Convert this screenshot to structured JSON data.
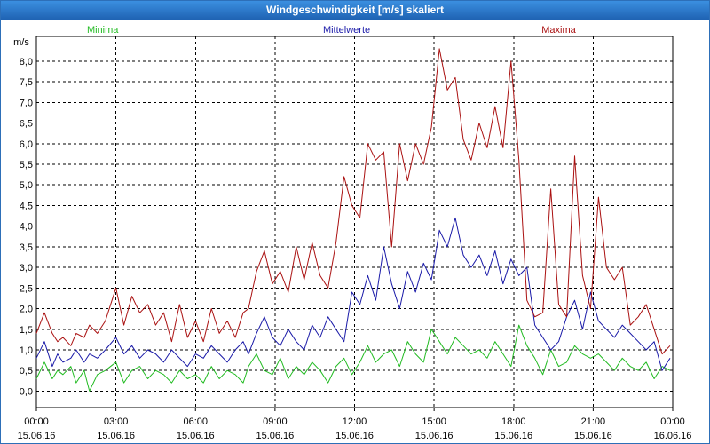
{
  "window": {
    "title": "Windgeschwindigkeit [m/s] skaliert"
  },
  "chart_data": {
    "type": "line",
    "title": "Windgeschwindigkeit [m/s] skaliert",
    "ylabel": "m/s",
    "xlabel": "",
    "ylim": [
      -0.4,
      8.6
    ],
    "xlim": [
      0,
      24
    ],
    "grid": true,
    "legend_position": "top",
    "y_ticks": [
      0,
      0.5,
      1,
      1.5,
      2,
      2.5,
      3,
      3.5,
      4,
      4.5,
      5,
      5.5,
      6,
      6.5,
      7,
      7.5,
      8
    ],
    "y_tick_labels": [
      "0,0",
      "0,5",
      "1,0",
      "1,5",
      "2,0",
      "2,5",
      "3,0",
      "3,5",
      "4,0",
      "4,5",
      "5,0",
      "5,5",
      "6,0",
      "6,5",
      "7,0",
      "7,5",
      "8,0"
    ],
    "x_ticks": [
      0,
      3,
      6,
      9,
      12,
      15,
      18,
      21,
      24
    ],
    "x_tick_labels": [
      [
        "00:00",
        "15.06.16"
      ],
      [
        "03:00",
        "15.06.16"
      ],
      [
        "06:00",
        "15.06.16"
      ],
      [
        "09:00",
        "15.06.16"
      ],
      [
        "12:00",
        "15.06.16"
      ],
      [
        "15:00",
        "15.06.16"
      ],
      [
        "18:00",
        "15.06.16"
      ],
      [
        "21:00",
        "15.06.16"
      ],
      [
        "00:00",
        "16.06.16"
      ]
    ],
    "series": [
      {
        "name": "Minima",
        "color": "#22bb22",
        "legend_x": 2.5,
        "x": [
          0,
          0.3,
          0.6,
          0.8,
          1,
          1.3,
          1.5,
          1.8,
          2,
          2.3,
          2.6,
          3,
          3.3,
          3.6,
          3.9,
          4.2,
          4.5,
          4.8,
          5.1,
          5.4,
          5.7,
          6,
          6.3,
          6.6,
          6.9,
          7.2,
          7.5,
          7.8,
          8,
          8.3,
          8.6,
          8.9,
          9.2,
          9.5,
          9.8,
          10.1,
          10.4,
          10.7,
          11,
          11.3,
          11.6,
          11.9,
          12.2,
          12.5,
          12.8,
          13.1,
          13.4,
          13.7,
          14,
          14.3,
          14.6,
          14.9,
          15.2,
          15.5,
          15.8,
          16.1,
          16.4,
          16.7,
          17,
          17.3,
          17.6,
          17.9,
          18.2,
          18.5,
          18.8,
          19.1,
          19.4,
          19.7,
          20,
          20.3,
          20.6,
          20.9,
          21.2,
          21.5,
          21.8,
          22.1,
          22.4,
          22.7,
          23,
          23.3,
          23.6,
          23.9
        ],
        "values": [
          0.3,
          0.7,
          0.3,
          0.5,
          0.4,
          0.6,
          0.2,
          0.5,
          0.0,
          0.4,
          0.5,
          0.7,
          0.2,
          0.5,
          0.6,
          0.3,
          0.5,
          0.4,
          0.2,
          0.5,
          0.3,
          0.4,
          0.2,
          0.6,
          0.3,
          0.5,
          0.4,
          0.2,
          0.6,
          0.9,
          0.5,
          0.4,
          0.8,
          0.3,
          0.6,
          0.4,
          0.7,
          0.5,
          0.2,
          0.6,
          0.8,
          0.4,
          0.7,
          1.1,
          0.7,
          0.9,
          1.0,
          0.6,
          1.2,
          0.9,
          0.7,
          1.5,
          1.2,
          0.9,
          1.3,
          1.1,
          0.9,
          1.0,
          0.8,
          1.2,
          0.9,
          0.6,
          1.6,
          1.1,
          0.8,
          0.4,
          1.0,
          0.6,
          0.7,
          1.1,
          0.9,
          0.8,
          0.9,
          0.7,
          0.5,
          0.8,
          0.6,
          0.5,
          0.7,
          0.3,
          0.6,
          0.5
        ]
      },
      {
        "name": "Mittelwerte",
        "color": "#1a1aa8",
        "legend_x": 11.7,
        "x": [
          0,
          0.3,
          0.6,
          0.8,
          1,
          1.3,
          1.5,
          1.8,
          2,
          2.3,
          2.6,
          3,
          3.3,
          3.6,
          3.9,
          4.2,
          4.5,
          4.8,
          5.1,
          5.4,
          5.7,
          6,
          6.3,
          6.6,
          6.9,
          7.2,
          7.5,
          7.8,
          8,
          8.3,
          8.6,
          8.9,
          9.2,
          9.5,
          9.8,
          10.1,
          10.4,
          10.7,
          11,
          11.3,
          11.6,
          11.9,
          12.2,
          12.5,
          12.8,
          13.1,
          13.4,
          13.7,
          14,
          14.3,
          14.6,
          14.9,
          15.2,
          15.5,
          15.8,
          16.1,
          16.4,
          16.7,
          17,
          17.3,
          17.6,
          17.9,
          18.2,
          18.5,
          18.8,
          19.1,
          19.4,
          19.7,
          20,
          20.3,
          20.6,
          20.9,
          21.2,
          21.5,
          21.8,
          22.1,
          22.4,
          22.7,
          23,
          23.3,
          23.6,
          23.9
        ],
        "values": [
          0.8,
          1.2,
          0.6,
          0.9,
          0.7,
          0.8,
          1.0,
          0.7,
          0.9,
          0.8,
          1.0,
          1.3,
          0.9,
          1.1,
          0.8,
          1.0,
          0.9,
          0.7,
          1.0,
          0.8,
          0.6,
          0.9,
          0.8,
          1.1,
          0.9,
          0.7,
          1.0,
          1.2,
          0.9,
          1.4,
          1.8,
          1.3,
          1.1,
          1.5,
          1.2,
          1.0,
          1.6,
          1.3,
          1.8,
          1.5,
          1.2,
          2.4,
          2.1,
          2.8,
          2.2,
          3.5,
          2.6,
          2.0,
          2.9,
          2.4,
          3.1,
          2.7,
          3.9,
          3.5,
          4.2,
          3.3,
          3.0,
          3.3,
          2.8,
          3.4,
          2.6,
          3.2,
          2.8,
          3.0,
          1.6,
          1.3,
          1.0,
          1.2,
          1.8,
          2.2,
          1.5,
          2.4,
          1.7,
          1.5,
          1.3,
          1.6,
          1.4,
          1.2,
          1.0,
          1.2,
          0.5,
          0.8
        ]
      },
      {
        "name": "Maxima",
        "color": "#aa1111",
        "legend_x": 19.7,
        "x": [
          0,
          0.3,
          0.6,
          0.8,
          1,
          1.3,
          1.5,
          1.8,
          2,
          2.3,
          2.6,
          3,
          3.3,
          3.6,
          3.9,
          4.2,
          4.5,
          4.8,
          5.1,
          5.4,
          5.7,
          6,
          6.3,
          6.6,
          6.9,
          7.2,
          7.5,
          7.8,
          8,
          8.3,
          8.6,
          8.9,
          9.2,
          9.5,
          9.8,
          10.1,
          10.4,
          10.7,
          11,
          11.3,
          11.6,
          11.9,
          12.2,
          12.5,
          12.8,
          13.1,
          13.4,
          13.7,
          14,
          14.3,
          14.6,
          14.9,
          15.2,
          15.5,
          15.8,
          16.1,
          16.4,
          16.7,
          17,
          17.3,
          17.6,
          17.9,
          18.2,
          18.5,
          18.8,
          19.1,
          19.4,
          19.7,
          20,
          20.3,
          20.6,
          20.9,
          21.2,
          21.5,
          21.8,
          22.1,
          22.4,
          22.7,
          23,
          23.3,
          23.6,
          23.9
        ],
        "values": [
          1.4,
          1.9,
          1.4,
          1.2,
          1.3,
          1.1,
          1.4,
          1.3,
          1.6,
          1.4,
          1.7,
          2.5,
          1.6,
          2.3,
          1.9,
          2.1,
          1.6,
          1.9,
          1.2,
          2.1,
          1.3,
          1.7,
          1.2,
          2.0,
          1.4,
          1.7,
          1.3,
          1.9,
          2.0,
          2.9,
          3.4,
          2.6,
          2.9,
          2.4,
          3.5,
          2.7,
          3.6,
          2.8,
          2.5,
          3.6,
          5.2,
          4.5,
          4.2,
          6.0,
          5.6,
          5.8,
          3.5,
          6.0,
          5.1,
          6.0,
          5.5,
          6.4,
          8.3,
          7.3,
          7.6,
          6.1,
          5.6,
          6.5,
          5.9,
          6.9,
          5.9,
          8.0,
          5.6,
          2.2,
          1.8,
          1.9,
          4.9,
          2.1,
          1.8,
          5.7,
          2.8,
          2.0,
          4.7,
          3.0,
          2.7,
          3.0,
          1.6,
          1.8,
          2.1,
          1.5,
          0.9,
          1.1
        ]
      }
    ]
  }
}
